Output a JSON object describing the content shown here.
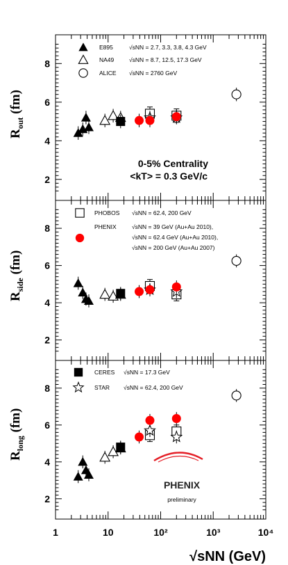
{
  "chart_data": {
    "type": "scatter",
    "x_scale": "log",
    "xlim": [
      1,
      10000
    ],
    "x_tick_labels": [
      "1",
      "10",
      "10²",
      "10³",
      "10⁴"
    ],
    "xlabel": "√sNN (GeV)",
    "panels": [
      {
        "id": "out",
        "ylabel_main": "R",
        "ylabel_sub": "out",
        "ylabel_unit": "(fm)",
        "ylim": [
          1.2,
          9.2
        ],
        "y_ticks": [
          2,
          4,
          6,
          8
        ],
        "annotation": [
          "0-5% Centrality",
          "<kT> = 0.3 GeV/c"
        ],
        "series": [
          {
            "name": "E895",
            "label": "√sNN = 2.7, 3.3, 3.8, 4.3 GeV",
            "marker": "triangle-filled",
            "points": [
              [
                2.7,
                4.4
              ],
              [
                3.3,
                4.6
              ],
              [
                3.8,
                5.2
              ],
              [
                4.3,
                4.7
              ]
            ]
          },
          {
            "name": "NA49",
            "label": "√sNN = 8.7, 12.5, 17.3 GeV",
            "marker": "triangle-open",
            "points": [
              [
                8.7,
                5.05
              ],
              [
                12.5,
                5.3
              ],
              [
                17.3,
                5.2
              ]
            ]
          },
          {
            "name": "ALICE",
            "label": "√sNN = 2760 GeV",
            "marker": "circle-open",
            "points": [
              [
                2760,
                6.4
              ]
            ]
          },
          {
            "name": "CERES",
            "marker": "square-filled",
            "points": [
              [
                17.3,
                5.0
              ]
            ]
          },
          {
            "name": "PHOBOS",
            "marker": "square-open",
            "points": [
              [
                62.4,
                5.4
              ],
              [
                200,
                5.3
              ]
            ]
          },
          {
            "name": "STAR",
            "marker": "star-open",
            "points": [
              [
                62.4,
                5.2
              ],
              [
                200,
                5.2
              ]
            ]
          },
          {
            "name": "PHENIX",
            "marker": "circle-filled",
            "points": [
              [
                39,
                5.05
              ],
              [
                62.4,
                5.05
              ],
              [
                200,
                5.25
              ]
            ]
          }
        ]
      },
      {
        "id": "side",
        "ylabel_main": "R",
        "ylabel_sub": "side",
        "ylabel_unit": "(fm)",
        "ylim": [
          1.2,
          9.2
        ],
        "y_ticks": [
          2,
          4,
          6,
          8
        ],
        "series": [
          {
            "name": "E895",
            "marker": "triangle-filled",
            "points": [
              [
                2.7,
                5.05
              ],
              [
                3.3,
                4.55
              ],
              [
                3.8,
                4.2
              ],
              [
                4.3,
                4.1
              ]
            ]
          },
          {
            "name": "NA49",
            "marker": "triangle-open",
            "points": [
              [
                8.7,
                4.45
              ],
              [
                12.5,
                4.35
              ],
              [
                17.3,
                4.45
              ]
            ]
          },
          {
            "name": "ALICE",
            "marker": "circle-open",
            "points": [
              [
                2760,
                6.25
              ]
            ]
          },
          {
            "name": "CERES",
            "marker": "square-filled",
            "points": [
              [
                17.3,
                4.5
              ]
            ]
          },
          {
            "name": "PHOBOS",
            "label": "√sNN = 62.4, 200 GeV",
            "marker": "square-open",
            "points": [
              [
                62.4,
                4.9
              ],
              [
                200,
                4.45
              ]
            ]
          },
          {
            "name": "STAR",
            "marker": "star-open",
            "points": [
              [
                62.4,
                4.7
              ],
              [
                200,
                4.6
              ]
            ]
          },
          {
            "name": "PHENIX",
            "label_lines": [
              "√sNN = 39 GeV (Au+Au 2010),",
              "√sNN = 62.4 GeV (Au+Au 2010),",
              "√sNN = 200 GeV (Au+Au 2007)"
            ],
            "marker": "circle-filled",
            "points": [
              [
                39,
                4.6
              ],
              [
                62.4,
                4.7
              ],
              [
                200,
                4.85
              ]
            ]
          }
        ]
      },
      {
        "id": "long",
        "ylabel_main": "R",
        "ylabel_sub": "long",
        "ylabel_unit": "(fm)",
        "ylim": [
          1.2,
          9.2
        ],
        "y_ticks": [
          2,
          4,
          6,
          8
        ],
        "series": [
          {
            "name": "E895",
            "marker": "triangle-filled",
            "points": [
              [
                2.7,
                3.2
              ],
              [
                3.3,
                4.0
              ],
              [
                3.8,
                3.55
              ],
              [
                4.3,
                3.3
              ]
            ]
          },
          {
            "name": "NA49",
            "marker": "triangle-open",
            "points": [
              [
                8.7,
                4.25
              ],
              [
                12.5,
                4.55
              ],
              [
                17.3,
                4.75
              ]
            ]
          },
          {
            "name": "ALICE",
            "marker": "circle-open",
            "points": [
              [
                2760,
                7.6
              ]
            ]
          },
          {
            "name": "CERES",
            "label": "√sNN = 17.3 GeV",
            "marker": "square-filled",
            "points": [
              [
                17.3,
                4.8
              ]
            ]
          },
          {
            "name": "PHOBOS",
            "marker": "square-open",
            "points": [
              [
                62.4,
                5.45
              ],
              [
                200,
                5.65
              ]
            ]
          },
          {
            "name": "STAR",
            "label": "√sNN = 62.4, 200 GeV",
            "marker": "star-open",
            "points": [
              [
                62.4,
                5.7
              ],
              [
                200,
                5.35
              ]
            ]
          },
          {
            "name": "PHENIX",
            "marker": "circle-filled",
            "points": [
              [
                39,
                5.35
              ],
              [
                62.4,
                6.25
              ],
              [
                200,
                6.35
              ]
            ]
          }
        ]
      }
    ],
    "branding": {
      "logo_text": "PHENIX",
      "subtitle": "preliminary",
      "logo_color": "#e41e26"
    },
    "colors": {
      "phenix": "#ff0000",
      "axis": "#000000",
      "logo": "#e41e26"
    }
  }
}
